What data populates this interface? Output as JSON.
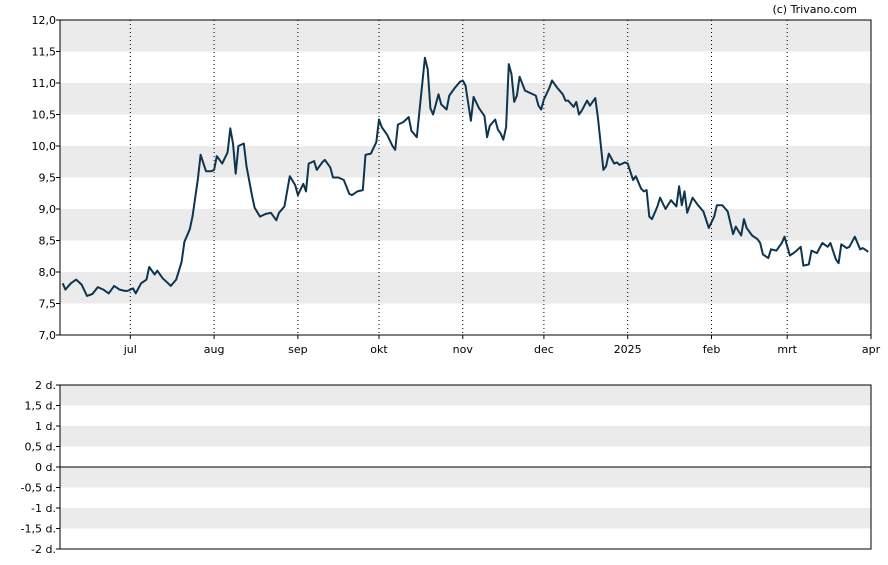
{
  "copyright": "(c) Trivano.com",
  "chart_data": [
    {
      "type": "line",
      "title": "",
      "xlabel": "",
      "ylabel": "",
      "ylim": [
        7.0,
        12.0
      ],
      "grid": "horizontal bands and dotted vertical month lines",
      "line_color": "#0d3550",
      "band_color": "#ebebeb",
      "y_ticks": [
        "7,0",
        "7,5",
        "8,0",
        "8,5",
        "9,0",
        "9,5",
        "10,0",
        "10,5",
        "11,0",
        "11,5",
        "12,0"
      ],
      "x_ticks": [
        {
          "label": "jul",
          "date": "2024-07-01"
        },
        {
          "label": "aug",
          "date": "2024-08-01"
        },
        {
          "label": "sep",
          "date": "2024-09-01"
        },
        {
          "label": "okt",
          "date": "2024-10-01"
        },
        {
          "label": "nov",
          "date": "2024-11-01"
        },
        {
          "label": "dec",
          "date": "2024-12-01"
        },
        {
          "label": "2025",
          "date": "2025-01-01"
        },
        {
          "label": "feb",
          "date": "2025-02-01"
        },
        {
          "label": "mrt",
          "date": "2025-03-01"
        },
        {
          "label": "apr",
          "date": "2025-04-01"
        }
      ],
      "series": [
        {
          "points": [
            [
              "2024-06-06",
              7.82
            ],
            [
              "2024-06-07",
              7.72
            ],
            [
              "2024-06-09",
              7.82
            ],
            [
              "2024-06-11",
              7.88
            ],
            [
              "2024-06-13",
              7.8
            ],
            [
              "2024-06-15",
              7.62
            ],
            [
              "2024-06-17",
              7.65
            ],
            [
              "2024-06-19",
              7.76
            ],
            [
              "2024-06-21",
              7.72
            ],
            [
              "2024-06-23",
              7.66
            ],
            [
              "2024-06-25",
              7.78
            ],
            [
              "2024-06-27",
              7.72
            ],
            [
              "2024-06-29",
              7.7
            ],
            [
              "2024-06-30",
              7.7
            ],
            [
              "2024-07-02",
              7.74
            ],
            [
              "2024-07-03",
              7.66
            ],
            [
              "2024-07-05",
              7.82
            ],
            [
              "2024-07-07",
              7.88
            ],
            [
              "2024-07-08",
              8.08
            ],
            [
              "2024-07-10",
              7.96
            ],
            [
              "2024-07-11",
              8.02
            ],
            [
              "2024-07-13",
              7.9
            ],
            [
              "2024-07-15",
              7.82
            ],
            [
              "2024-07-16",
              7.78
            ],
            [
              "2024-07-18",
              7.88
            ],
            [
              "2024-07-20",
              8.16
            ],
            [
              "2024-07-21",
              8.48
            ],
            [
              "2024-07-23",
              8.68
            ],
            [
              "2024-07-24",
              8.88
            ],
            [
              "2024-07-26",
              9.48
            ],
            [
              "2024-07-27",
              9.86
            ],
            [
              "2024-07-29",
              9.6
            ],
            [
              "2024-07-31",
              9.6
            ],
            [
              "2024-08-01",
              9.62
            ],
            [
              "2024-08-02",
              9.84
            ],
            [
              "2024-08-04",
              9.72
            ],
            [
              "2024-08-06",
              9.9
            ],
            [
              "2024-08-07",
              10.28
            ],
            [
              "2024-08-08",
              10.04
            ],
            [
              "2024-08-09",
              9.56
            ],
            [
              "2024-08-10",
              10.0
            ],
            [
              "2024-08-12",
              10.04
            ],
            [
              "2024-08-13",
              9.68
            ],
            [
              "2024-08-15",
              9.22
            ],
            [
              "2024-08-16",
              9.02
            ],
            [
              "2024-08-18",
              8.88
            ],
            [
              "2024-08-20",
              8.92
            ],
            [
              "2024-08-22",
              8.94
            ],
            [
              "2024-08-24",
              8.82
            ],
            [
              "2024-08-25",
              8.94
            ],
            [
              "2024-08-27",
              9.04
            ],
            [
              "2024-08-29",
              9.52
            ],
            [
              "2024-08-31",
              9.38
            ],
            [
              "2024-09-01",
              9.22
            ],
            [
              "2024-09-03",
              9.4
            ],
            [
              "2024-09-04",
              9.28
            ],
            [
              "2024-09-05",
              9.72
            ],
            [
              "2024-09-07",
              9.76
            ],
            [
              "2024-09-08",
              9.62
            ],
            [
              "2024-09-10",
              9.74
            ],
            [
              "2024-09-11",
              9.78
            ],
            [
              "2024-09-13",
              9.66
            ],
            [
              "2024-09-14",
              9.5
            ],
            [
              "2024-09-16",
              9.5
            ],
            [
              "2024-09-18",
              9.46
            ],
            [
              "2024-09-20",
              9.24
            ],
            [
              "2024-09-21",
              9.22
            ],
            [
              "2024-09-23",
              9.28
            ],
            [
              "2024-09-25",
              9.3
            ],
            [
              "2024-09-26",
              9.86
            ],
            [
              "2024-09-28",
              9.88
            ],
            [
              "2024-09-30",
              10.06
            ],
            [
              "2024-10-01",
              10.42
            ],
            [
              "2024-10-02",
              10.3
            ],
            [
              "2024-10-04",
              10.18
            ],
            [
              "2024-10-06",
              10.0
            ],
            [
              "2024-10-07",
              9.94
            ],
            [
              "2024-10-08",
              10.34
            ],
            [
              "2024-10-10",
              10.38
            ],
            [
              "2024-10-12",
              10.46
            ],
            [
              "2024-10-13",
              10.24
            ],
            [
              "2024-10-15",
              10.14
            ],
            [
              "2024-10-16",
              10.56
            ],
            [
              "2024-10-17",
              10.98
            ],
            [
              "2024-10-18",
              11.4
            ],
            [
              "2024-10-19",
              11.22
            ],
            [
              "2024-10-20",
              10.6
            ],
            [
              "2024-10-21",
              10.5
            ],
            [
              "2024-10-23",
              10.82
            ],
            [
              "2024-10-24",
              10.66
            ],
            [
              "2024-10-26",
              10.58
            ],
            [
              "2024-10-27",
              10.8
            ],
            [
              "2024-10-29",
              10.92
            ],
            [
              "2024-10-31",
              11.02
            ],
            [
              "2024-11-01",
              11.04
            ],
            [
              "2024-11-02",
              10.96
            ],
            [
              "2024-11-04",
              10.4
            ],
            [
              "2024-11-05",
              10.78
            ],
            [
              "2024-11-07",
              10.6
            ],
            [
              "2024-11-09",
              10.48
            ],
            [
              "2024-11-10",
              10.14
            ],
            [
              "2024-11-11",
              10.32
            ],
            [
              "2024-11-13",
              10.42
            ],
            [
              "2024-11-14",
              10.26
            ],
            [
              "2024-11-15",
              10.2
            ],
            [
              "2024-11-16",
              10.1
            ],
            [
              "2024-11-17",
              10.3
            ],
            [
              "2024-11-18",
              11.3
            ],
            [
              "2024-11-19",
              11.14
            ],
            [
              "2024-11-20",
              10.7
            ],
            [
              "2024-11-21",
              10.8
            ],
            [
              "2024-11-22",
              11.1
            ],
            [
              "2024-11-24",
              10.88
            ],
            [
              "2024-11-26",
              10.84
            ],
            [
              "2024-11-28",
              10.8
            ],
            [
              "2024-11-29",
              10.64
            ],
            [
              "2024-11-30",
              10.58
            ],
            [
              "2024-12-01",
              10.74
            ],
            [
              "2024-12-03",
              10.92
            ],
            [
              "2024-12-04",
              11.04
            ],
            [
              "2024-12-06",
              10.92
            ],
            [
              "2024-12-08",
              10.82
            ],
            [
              "2024-12-09",
              10.72
            ],
            [
              "2024-12-10",
              10.72
            ],
            [
              "2024-12-12",
              10.62
            ],
            [
              "2024-12-13",
              10.7
            ],
            [
              "2024-12-14",
              10.5
            ],
            [
              "2024-12-15",
              10.56
            ],
            [
              "2024-12-17",
              10.72
            ],
            [
              "2024-12-18",
              10.64
            ],
            [
              "2024-12-20",
              10.76
            ],
            [
              "2024-12-21",
              10.44
            ],
            [
              "2024-12-23",
              9.62
            ],
            [
              "2024-12-24",
              9.68
            ],
            [
              "2024-12-25",
              9.88
            ],
            [
              "2024-12-27",
              9.72
            ],
            [
              "2024-12-28",
              9.74
            ],
            [
              "2024-12-29",
              9.7
            ],
            [
              "2024-12-31",
              9.74
            ],
            [
              "2025-01-01",
              9.72
            ],
            [
              "2025-01-03",
              9.46
            ],
            [
              "2025-01-04",
              9.52
            ],
            [
              "2025-01-06",
              9.32
            ],
            [
              "2025-01-07",
              9.28
            ],
            [
              "2025-01-08",
              9.3
            ],
            [
              "2025-01-09",
              8.88
            ],
            [
              "2025-01-10",
              8.84
            ],
            [
              "2025-01-12",
              9.04
            ],
            [
              "2025-01-13",
              9.18
            ],
            [
              "2025-01-15",
              9.0
            ],
            [
              "2025-01-17",
              9.14
            ],
            [
              "2025-01-19",
              9.04
            ],
            [
              "2025-01-20",
              9.36
            ],
            [
              "2025-01-21",
              9.06
            ],
            [
              "2025-01-22",
              9.28
            ],
            [
              "2025-01-23",
              8.94
            ],
            [
              "2025-01-25",
              9.18
            ],
            [
              "2025-01-27",
              9.06
            ],
            [
              "2025-01-29",
              8.96
            ],
            [
              "2025-01-31",
              8.7
            ],
            [
              "2025-02-02",
              8.88
            ],
            [
              "2025-02-03",
              9.06
            ],
            [
              "2025-02-05",
              9.06
            ],
            [
              "2025-02-07",
              8.96
            ],
            [
              "2025-02-08",
              8.78
            ],
            [
              "2025-02-09",
              8.6
            ],
            [
              "2025-02-10",
              8.72
            ],
            [
              "2025-02-12",
              8.58
            ],
            [
              "2025-02-13",
              8.84
            ],
            [
              "2025-02-14",
              8.7
            ],
            [
              "2025-02-16",
              8.58
            ],
            [
              "2025-02-18",
              8.52
            ],
            [
              "2025-02-19",
              8.46
            ],
            [
              "2025-02-20",
              8.28
            ],
            [
              "2025-02-22",
              8.22
            ],
            [
              "2025-02-23",
              8.36
            ],
            [
              "2025-02-25",
              8.34
            ],
            [
              "2025-02-27",
              8.46
            ],
            [
              "2025-02-28",
              8.56
            ],
            [
              "2025-03-02",
              8.26
            ],
            [
              "2025-03-04",
              8.32
            ],
            [
              "2025-03-06",
              8.4
            ],
            [
              "2025-03-07",
              8.1
            ],
            [
              "2025-03-09",
              8.12
            ],
            [
              "2025-03-10",
              8.34
            ],
            [
              "2025-03-12",
              8.3
            ],
            [
              "2025-03-14",
              8.46
            ],
            [
              "2025-03-16",
              8.4
            ],
            [
              "2025-03-17",
              8.46
            ],
            [
              "2025-03-19",
              8.2
            ],
            [
              "2025-03-20",
              8.14
            ],
            [
              "2025-03-21",
              8.44
            ],
            [
              "2025-03-23",
              8.38
            ],
            [
              "2025-03-24",
              8.4
            ],
            [
              "2025-03-26",
              8.56
            ],
            [
              "2025-03-28",
              8.36
            ],
            [
              "2025-03-29",
              8.38
            ],
            [
              "2025-03-31",
              8.32
            ]
          ]
        }
      ]
    },
    {
      "type": "line",
      "title": "",
      "ylim": [
        -2,
        2
      ],
      "y_ticks": [
        "-2 d.",
        "-1,5 d.",
        "-1 d.",
        "-0,5 d.",
        "0 d.",
        "0,5 d.",
        "1 d.",
        "1,5 d.",
        "2 d."
      ],
      "zero_line": 0,
      "series": []
    }
  ]
}
